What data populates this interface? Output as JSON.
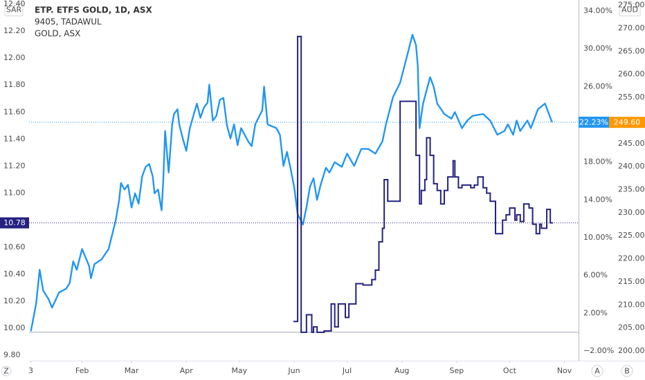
{
  "chart_data": {
    "type": "line",
    "y_unit": "SAR",
    "y3_unit": "AUD",
    "buttons": [
      "Z",
      "A",
      "B"
    ],
    "zero_line": true,
    "grid": false,
    "xlim": [
      -1,
      310
    ],
    "xticks": [
      {
        "value": 0,
        "label": "3"
      },
      {
        "value": 29,
        "label": "Feb"
      },
      {
        "value": 57,
        "label": "Mar"
      },
      {
        "value": 88,
        "label": "Apr"
      },
      {
        "value": 118,
        "label": "May"
      },
      {
        "value": 149,
        "label": "Jun"
      },
      {
        "value": 179,
        "label": "Jul"
      },
      {
        "value": 210,
        "label": "Aug"
      },
      {
        "value": 241,
        "label": "Sep"
      },
      {
        "value": 271,
        "label": "Oct"
      },
      {
        "value": 302,
        "label": "Nov"
      }
    ],
    "ylim": [
      9.76,
      12.43
    ],
    "yticks": [
      {
        "value": 9.8,
        "label": "9.80"
      },
      {
        "value": 10,
        "label": "10.00"
      },
      {
        "value": 10.2,
        "label": "10.20"
      },
      {
        "value": 10.4,
        "label": "10.40"
      },
      {
        "value": 10.6,
        "label": "10.60"
      },
      {
        "value": 11,
        "label": "11.00"
      },
      {
        "value": 11.2,
        "label": "11.20"
      },
      {
        "value": 11.4,
        "label": "11.40"
      },
      {
        "value": 11.6,
        "label": "11.60"
      },
      {
        "value": 11.8,
        "label": "11.80"
      },
      {
        "value": 12,
        "label": "12.00"
      },
      {
        "value": 12.2,
        "label": "12.20"
      },
      {
        "value": 12.4,
        "label": "12.40"
      }
    ],
    "y2lim": [
      -3.02,
      35.17
    ],
    "y2ticks": [
      {
        "value": -2,
        "label": "−2.00%"
      },
      {
        "value": 2,
        "label": "2.00%"
      },
      {
        "value": 6,
        "label": "6.00%"
      },
      {
        "value": 10,
        "label": "10.00%"
      },
      {
        "value": 14,
        "label": "14.00%"
      },
      {
        "value": 18,
        "label": "18.00%"
      },
      {
        "value": 26,
        "label": "26.00%"
      },
      {
        "value": 30,
        "label": "30.00%"
      },
      {
        "value": 34,
        "label": "34.00%"
      }
    ],
    "y3lim": [
      197.9,
      276.15
    ],
    "y3ticks": [
      {
        "value": 200,
        "label": "200.00"
      },
      {
        "value": 205,
        "label": "205.00"
      },
      {
        "value": 210,
        "label": "210.00"
      },
      {
        "value": 215,
        "label": "215.00"
      },
      {
        "value": 220,
        "label": "220.00"
      },
      {
        "value": 225,
        "label": "225.00"
      },
      {
        "value": 230,
        "label": "230.00"
      },
      {
        "value": 235,
        "label": "235.00"
      },
      {
        "value": 240,
        "label": "240.00"
      },
      {
        "value": 245,
        "label": "245.00"
      },
      {
        "value": 255,
        "label": "255.00"
      },
      {
        "value": 260,
        "label": "260.00"
      },
      {
        "value": 265,
        "label": "265.00"
      },
      {
        "value": 270,
        "label": "270.00"
      },
      {
        "value": 275,
        "label": "275.00"
      }
    ],
    "series": [
      {
        "name": "ETP. ETFS GOLD, 1D, ASX",
        "color": "#2196f3",
        "axis": "y2",
        "step": false,
        "x": [
          0,
          3,
          5,
          7,
          10,
          12,
          16,
          20,
          22,
          24,
          26,
          29,
          33,
          34,
          36,
          40,
          44,
          48,
          50,
          51,
          53,
          55,
          57,
          59,
          61,
          63,
          65,
          67,
          69,
          70,
          72,
          74,
          75,
          76,
          78,
          80,
          81,
          83,
          84,
          86,
          88,
          90,
          94,
          96,
          98,
          100,
          101,
          103,
          105,
          107,
          109,
          111,
          113,
          115,
          117,
          119,
          123,
          125,
          127,
          131,
          132,
          134,
          139,
          141,
          143,
          145,
          147,
          149,
          151,
          154,
          156,
          158,
          160,
          162,
          164,
          167,
          169,
          172,
          176,
          179,
          183,
          187,
          191,
          195,
          199,
          201,
          205,
          209,
          213,
          216,
          218,
          219,
          220,
          222,
          226,
          228,
          230,
          234,
          238,
          240,
          244,
          247,
          250,
          256,
          260,
          264,
          268,
          270,
          273,
          275,
          277,
          281,
          283,
          287,
          291,
          295
        ],
        "values": [
          0.1,
          3.0,
          6.6,
          4.4,
          3.5,
          2.6,
          4.2,
          4.6,
          5.2,
          7.5,
          6.6,
          8.8,
          7.0,
          5.7,
          7.2,
          7.7,
          8.8,
          11.8,
          14.0,
          15.8,
          15.1,
          15.6,
          13.2,
          14.7,
          13.6,
          16.5,
          17.5,
          17.8,
          16.5,
          14.7,
          15.1,
          12.9,
          16.2,
          21.3,
          16.9,
          22.0,
          23.1,
          23.6,
          22.0,
          20.5,
          19.2,
          21.6,
          24.2,
          22.7,
          23.8,
          24.3,
          26.2,
          22.4,
          22.9,
          24.6,
          24.8,
          21.9,
          20.5,
          22.0,
          19.8,
          21.6,
          20.2,
          19.7,
          22.0,
          23.5,
          26.0,
          22.0,
          21.6,
          20.9,
          17.6,
          19.1,
          17.3,
          15.4,
          12.5,
          11.4,
          13.2,
          15.4,
          16.3,
          14.0,
          15.6,
          17.4,
          16.9,
          18.0,
          17.5,
          18.9,
          17.6,
          19.4,
          19.4,
          18.9,
          20.2,
          22.0,
          24.9,
          26.4,
          29.3,
          31.5,
          30.4,
          28.2,
          21.6,
          24.2,
          27.0,
          26.0,
          24.2,
          23.1,
          22.6,
          23.3,
          21.6,
          22.4,
          22.9,
          23.1,
          22.4,
          20.9,
          21.3,
          22.0,
          20.9,
          22.4,
          21.3,
          22.4,
          21.6,
          23.6,
          24.2,
          22.23
        ],
        "last_label": {
          "value": 22.23,
          "label": "22.23%"
        }
      },
      {
        "name": "9405, TADAWUL",
        "color": "#24217f",
        "axis": "y",
        "step": true,
        "x": [
          149,
          151,
          153,
          156,
          159,
          160,
          162,
          166,
          170,
          172,
          174,
          178,
          180,
          184,
          188,
          193,
          195,
          197,
          199,
          200,
          202,
          209,
          218,
          220,
          221,
          223,
          224,
          226,
          228,
          230,
          232,
          234,
          236,
          239,
          240,
          242,
          244,
          249,
          251,
          253,
          256,
          258,
          260,
          263,
          267,
          269,
          271,
          274,
          275,
          277,
          279,
          282,
          284,
          286,
          288,
          289,
          292,
          294
        ],
        "values": [
          10.05,
          12.16,
          9.97,
          10.1,
          9.97,
          10.01,
          9.97,
          9.98,
          10.18,
          10.01,
          10.18,
          10.08,
          10.18,
          10.33,
          10.32,
          10.36,
          10.43,
          10.64,
          10.74,
          11.1,
          10.94,
          11.68,
          11.28,
          10.92,
          11.02,
          11.1,
          11.41,
          11.28,
          11.07,
          11.02,
          10.92,
          11.02,
          11.12,
          11.24,
          11.12,
          11.04,
          11.06,
          11.04,
          11.06,
          11.12,
          11.04,
          11.0,
          10.94,
          10.7,
          10.8,
          10.84,
          10.89,
          10.8,
          10.84,
          10.79,
          10.92,
          10.89,
          10.77,
          10.7,
          10.77,
          10.74,
          10.88,
          10.78
        ],
        "last_label": 10.78
      },
      {
        "name": "GOLD, ASX",
        "color": "#ff9800",
        "axis": "y3",
        "last_label": {
          "value": 249.6,
          "label": "249.60"
        }
      }
    ]
  }
}
